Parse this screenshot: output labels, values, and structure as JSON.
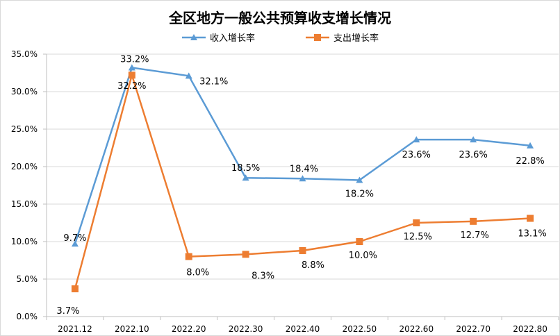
{
  "chart_data": {
    "type": "line",
    "title": "全区地方一般公共预算收支增长情况",
    "xlabel": "",
    "ylabel": "",
    "categories": [
      "2021.12",
      "2022.10",
      "2022.20",
      "2022.30",
      "2022.40",
      "2022.50",
      "2022.60",
      "2022.70",
      "2022.80"
    ],
    "ylim": [
      0,
      35
    ],
    "yticks": [
      0,
      5,
      10,
      15,
      20,
      25,
      30,
      35
    ],
    "ytick_labels": [
      "0.0%",
      "5.0%",
      "10.0%",
      "15.0%",
      "20.0%",
      "25.0%",
      "30.0%",
      "35.0%"
    ],
    "grid": true,
    "legend_position": "top",
    "series": [
      {
        "name": "收入增长率",
        "color": "#5b9bd5",
        "marker": "triangle",
        "values": [
          9.7,
          33.2,
          32.1,
          18.5,
          18.4,
          18.2,
          23.6,
          23.6,
          22.8
        ],
        "labels": [
          "9.7%",
          "33.2%",
          "32.1%",
          "18.5%",
          "18.4%",
          "18.2%",
          "23.6%",
          "23.6%",
          "22.8%"
        ]
      },
      {
        "name": "支出增长率",
        "color": "#ed7d31",
        "marker": "square",
        "values": [
          3.7,
          32.2,
          8.0,
          8.3,
          8.8,
          10.0,
          12.5,
          12.7,
          13.1
        ],
        "labels": [
          "3.7%",
          "32.2%",
          "8.0%",
          "8.3%",
          "8.8%",
          "10.0%",
          "12.5%",
          "12.7%",
          "13.1%"
        ]
      }
    ]
  }
}
